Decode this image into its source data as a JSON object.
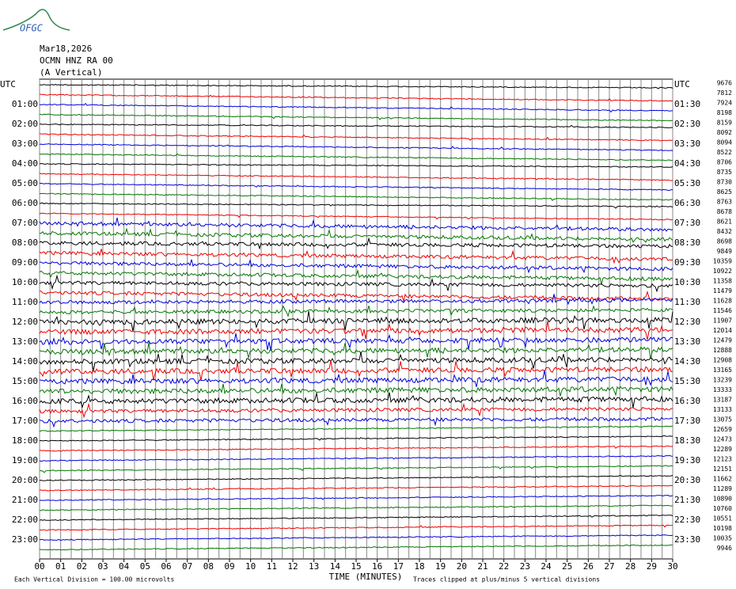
{
  "header": {
    "logo": "OFGC",
    "date": "Mar18,2026",
    "station": "OCMN HNZ RA 00",
    "component": "(A Vertical)"
  },
  "left_labels": [
    "UTC",
    "01:00",
    "02:00",
    "03:00",
    "04:00",
    "05:00",
    "06:00",
    "07:00",
    "08:00",
    "09:00",
    "10:00",
    "11:00",
    "12:00",
    "13:00",
    "14:00",
    "15:00",
    "16:00",
    "17:00",
    "18:00",
    "19:00",
    "20:00",
    "21:00",
    "22:00",
    "23:00"
  ],
  "right_labels": [
    "UTC",
    "01:30",
    "02:30",
    "03:30",
    "04:30",
    "05:30",
    "06:30",
    "07:30",
    "08:30",
    "09:30",
    "10:30",
    "11:30",
    "12:30",
    "13:30",
    "14:30",
    "15:30",
    "16:30",
    "17:30",
    "18:30",
    "19:30",
    "20:30",
    "21:30",
    "22:30",
    "23:30"
  ],
  "right_values": [
    "9676",
    "7812",
    "7924",
    "8198",
    "8159",
    "8092",
    "8094",
    "8522",
    "8706",
    "8735",
    "8730",
    "8625",
    "8763",
    "8678",
    "8621",
    "8432",
    "8698",
    "9849",
    "10359",
    "10922",
    "11358",
    "11479",
    "11628",
    "11546",
    "11907",
    "12014",
    "12479",
    "12888",
    "12908",
    "13165",
    "13239",
    "13333",
    "13187",
    "13133",
    "13075",
    "12659",
    "12473",
    "12289",
    "12123",
    "12151",
    "11662",
    "11289",
    "10890",
    "10760",
    "10551",
    "10198",
    "10035",
    "9946"
  ],
  "x_ticks": [
    "00",
    "01",
    "02",
    "03",
    "04",
    "05",
    "06",
    "07",
    "08",
    "09",
    "10",
    "11",
    "12",
    "13",
    "14",
    "15",
    "16",
    "17",
    "18",
    "19",
    "20",
    "21",
    "22",
    "23",
    "24",
    "25",
    "26",
    "27",
    "28",
    "29",
    "30"
  ],
  "footer": {
    "scale": "Each Vertical Division =  100.00 microvolts",
    "x_title": "TIME (MINUTES)",
    "clip_note": "Traces clipped at plus/minus 5 vertical divisions"
  }
}
